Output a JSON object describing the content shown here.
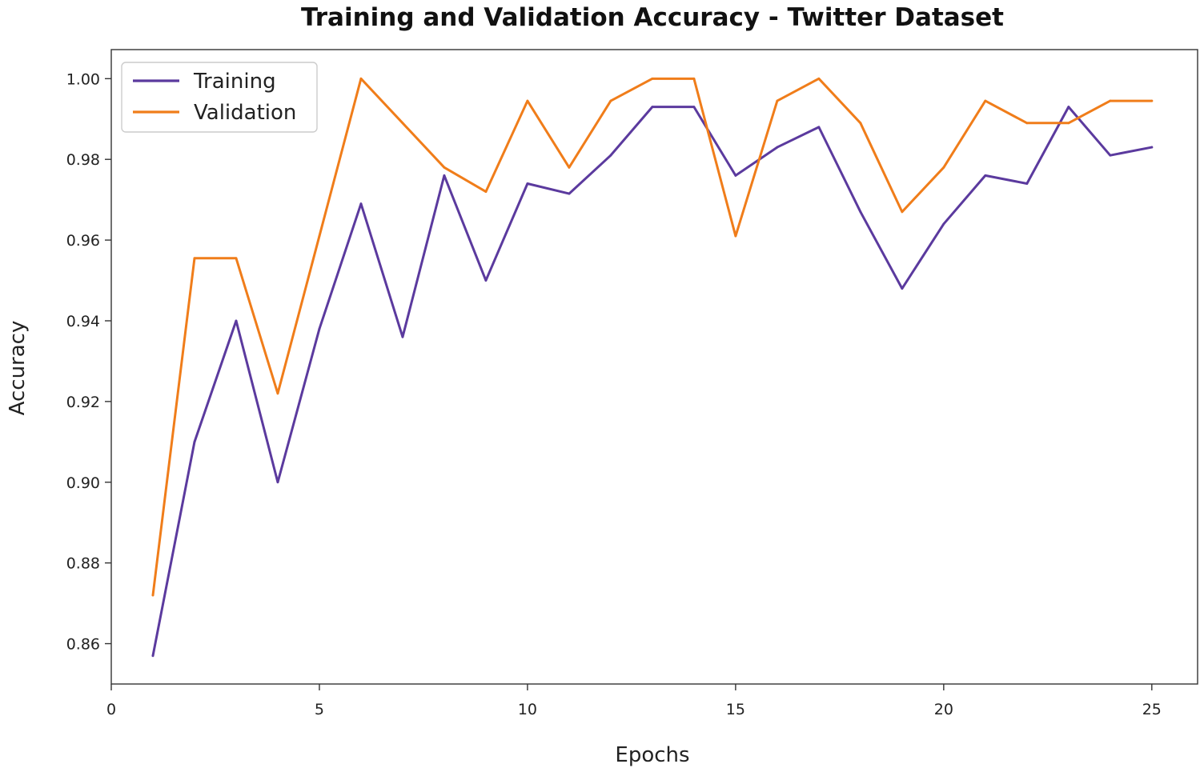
{
  "chart_data": {
    "type": "line",
    "title": "Training and Validation Accuracy - Twitter Dataset",
    "xlabel": "Epochs",
    "ylabel": "Accuracy",
    "xlim": [
      0,
      26.1
    ],
    "ylim": [
      0.85,
      1.0072
    ],
    "xticks": [
      0,
      5,
      10,
      15,
      20,
      25
    ],
    "yticks": [
      0.86,
      0.88,
      0.9,
      0.92,
      0.94,
      0.96,
      0.98,
      1.0
    ],
    "xtick_labels": [
      "0",
      "5",
      "10",
      "15",
      "20",
      "25"
    ],
    "ytick_labels": [
      "0.86",
      "0.88",
      "0.90",
      "0.92",
      "0.94",
      "0.96",
      "0.98",
      "1.00"
    ],
    "grid": false,
    "legend_position": "upper-left",
    "x": [
      1,
      2,
      3,
      4,
      5,
      6,
      7,
      8,
      9,
      10,
      11,
      12,
      13,
      14,
      15,
      16,
      17,
      18,
      19,
      20,
      21,
      22,
      23,
      24,
      25
    ],
    "series": [
      {
        "name": "Training",
        "color": "#5b3a9e",
        "values": [
          0.857,
          0.91,
          0.94,
          0.9,
          0.938,
          0.969,
          0.936,
          0.976,
          0.95,
          0.974,
          0.9715,
          0.981,
          0.993,
          0.993,
          0.976,
          0.983,
          0.988,
          0.967,
          0.948,
          0.964,
          0.976,
          0.974,
          0.993,
          0.981,
          0.983
        ]
      },
      {
        "name": "Validation",
        "color": "#f07d1a",
        "values": [
          0.872,
          0.9555,
          0.9555,
          0.922,
          0.961,
          1.0,
          0.989,
          0.978,
          0.972,
          0.9945,
          0.978,
          0.9945,
          1.0,
          1.0,
          0.961,
          0.9945,
          1.0,
          0.989,
          0.967,
          0.978,
          0.9945,
          0.989,
          0.989,
          0.9945,
          0.9945
        ]
      }
    ]
  }
}
